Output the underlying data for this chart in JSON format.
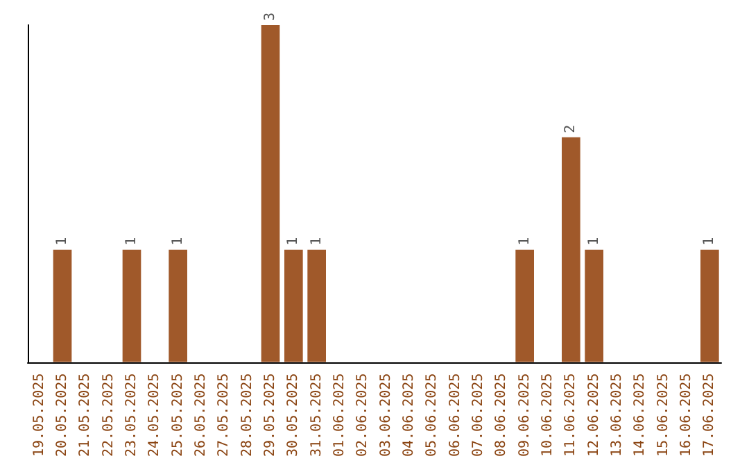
{
  "chart_data": {
    "type": "bar",
    "categories": [
      "19.05.2025",
      "20.05.2025",
      "21.05.2025",
      "22.05.2025",
      "23.05.2025",
      "24.05.2025",
      "25.05.2025",
      "26.05.2025",
      "27.05.2025",
      "28.05.2025",
      "29.05.2025",
      "30.05.2025",
      "31.05.2025",
      "01.06.2025",
      "02.06.2025",
      "03.06.2025",
      "04.06.2025",
      "05.06.2025",
      "06.06.2025",
      "07.06.2025",
      "08.06.2025",
      "09.06.2025",
      "10.06.2025",
      "11.06.2025",
      "12.06.2025",
      "13.06.2025",
      "14.06.2025",
      "15.06.2025",
      "16.06.2025",
      "17.06.2025"
    ],
    "values": [
      0,
      1,
      0,
      0,
      1,
      0,
      1,
      0,
      0,
      0,
      3,
      1,
      1,
      0,
      0,
      0,
      0,
      0,
      0,
      0,
      0,
      1,
      0,
      2,
      1,
      0,
      0,
      0,
      0,
      1
    ],
    "value_labels": [
      null,
      "1",
      null,
      null,
      "1",
      null,
      "1",
      null,
      null,
      null,
      "3",
      "1",
      "1",
      null,
      null,
      null,
      null,
      null,
      null,
      null,
      null,
      "1",
      null,
      "2",
      "1",
      null,
      null,
      null,
      null,
      "1"
    ],
    "color": "#a0592a",
    "grid": false,
    "tick_labels": "x"
  }
}
